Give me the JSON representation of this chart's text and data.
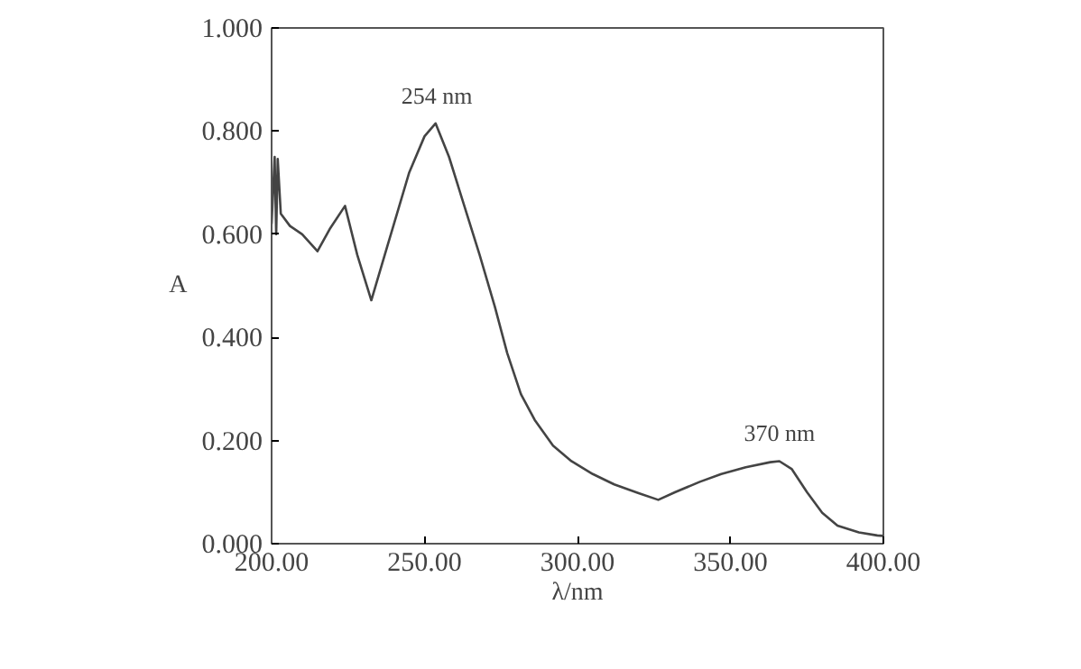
{
  "chart_data": {
    "type": "line",
    "xlabel": "λ/nm",
    "ylabel": "A",
    "x": [
      200,
      201,
      201.5,
      202,
      203,
      206,
      210,
      215,
      219,
      224,
      228,
      232.6,
      238,
      245,
      250,
      253.6,
      258,
      263,
      268,
      273,
      277,
      281.5,
      286,
      292,
      298,
      305,
      312,
      320,
      326.4,
      332,
      340,
      347,
      355,
      363,
      366,
      370,
      375,
      380,
      385,
      392,
      398,
      400
    ],
    "values": [
      0.62,
      0.75,
      0.6,
      0.746,
      0.64,
      0.616,
      0.6,
      0.567,
      0.61,
      0.655,
      0.56,
      0.472,
      0.58,
      0.72,
      0.79,
      0.815,
      0.75,
      0.655,
      0.56,
      0.459,
      0.37,
      0.29,
      0.24,
      0.19,
      0.16,
      0.135,
      0.115,
      0.098,
      0.085,
      0.1,
      0.12,
      0.135,
      0.148,
      0.158,
      0.16,
      0.145,
      0.1,
      0.06,
      0.035,
      0.022,
      0.016,
      0.015
    ],
    "color": "#444444",
    "marker": "none",
    "line_style": "solid",
    "grid": false,
    "xlim": [
      200,
      400
    ],
    "xticks": [
      {
        "value": 200,
        "label": "200.00"
      },
      {
        "value": 250,
        "label": "250.00"
      },
      {
        "value": 300,
        "label": "300.00"
      },
      {
        "value": 350,
        "label": "350.00"
      },
      {
        "value": 400,
        "label": "400.00"
      }
    ],
    "ylim": [
      0,
      1
    ],
    "yticks": [
      {
        "value": 0,
        "label": "0.000"
      },
      {
        "value": 0.2,
        "label": "0.200"
      },
      {
        "value": 0.4,
        "label": "0.400"
      },
      {
        "value": 0.6,
        "label": "0.600"
      },
      {
        "value": 0.8,
        "label": "0.800"
      },
      {
        "value": 1,
        "label": "1.000"
      }
    ],
    "annotations": [
      {
        "text": "254 nm",
        "x": 254,
        "y": 0.815
      },
      {
        "text": "370 nm",
        "x": 366,
        "y": 0.16
      }
    ]
  }
}
